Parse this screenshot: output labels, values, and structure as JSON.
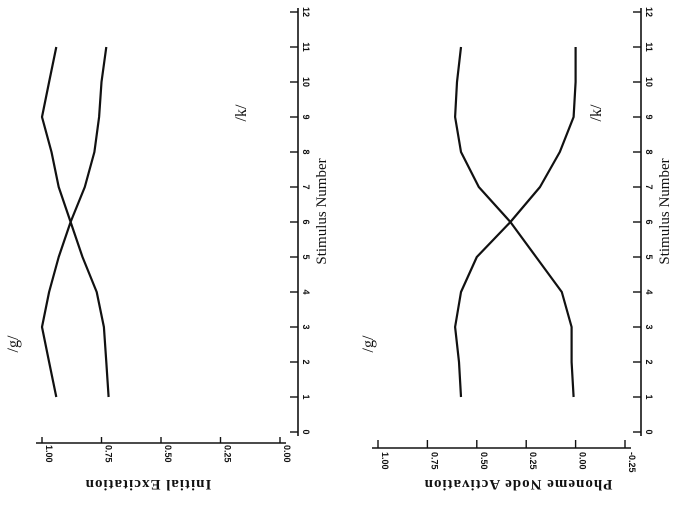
{
  "chart_data": [
    {
      "type": "line",
      "xlabel": "Stimulus Number",
      "ylabel": "Initial Excitation",
      "xlim": [
        0,
        12
      ],
      "ylim": [
        0,
        1
      ],
      "x_ticks": [
        "0",
        "1",
        "2",
        "3",
        "4",
        "5",
        "6",
        "7",
        "8",
        "9",
        "10",
        "11",
        "12"
      ],
      "y_ticks": [
        "0.00",
        "0.25",
        "0.50",
        "0.75",
        "1.00"
      ],
      "series": [
        {
          "name": "/g/",
          "x": [
            1,
            2,
            3,
            4,
            5,
            6,
            7,
            8,
            9,
            10,
            11
          ],
          "values": [
            0.94,
            0.97,
            1.0,
            0.97,
            0.93,
            0.88,
            0.82,
            0.78,
            0.76,
            0.75,
            0.73
          ]
        },
        {
          "name": "/k/",
          "x": [
            1,
            2,
            3,
            4,
            5,
            6,
            7,
            8,
            9,
            10,
            11
          ],
          "values": [
            0.72,
            0.73,
            0.74,
            0.77,
            0.83,
            0.88,
            0.93,
            0.96,
            1.0,
            0.97,
            0.94
          ]
        }
      ]
    },
    {
      "type": "line",
      "xlabel": "Stimulus Number",
      "ylabel": "Phoneme Node Activation",
      "xlim": [
        0,
        12
      ],
      "ylim": [
        -0.25,
        1
      ],
      "x_ticks": [
        "0",
        "1",
        "2",
        "3",
        "4",
        "5",
        "6",
        "7",
        "8",
        "9",
        "10",
        "11",
        "12"
      ],
      "y_ticks": [
        "-0.25",
        "0.00",
        "0.25",
        "0.50",
        "0.75",
        "1.00"
      ],
      "series": [
        {
          "name": "/g/",
          "x": [
            1,
            2,
            3,
            4,
            5,
            6,
            7,
            8,
            9,
            10,
            11
          ],
          "values": [
            0.58,
            0.59,
            0.61,
            0.58,
            0.5,
            0.33,
            0.18,
            0.08,
            0.01,
            0.0,
            0.0
          ]
        },
        {
          "name": "/k/",
          "x": [
            1,
            2,
            3,
            4,
            5,
            6,
            7,
            8,
            9,
            10,
            11
          ],
          "values": [
            0.01,
            0.02,
            0.02,
            0.07,
            0.2,
            0.33,
            0.49,
            0.58,
            0.61,
            0.6,
            0.58
          ]
        }
      ]
    }
  ]
}
